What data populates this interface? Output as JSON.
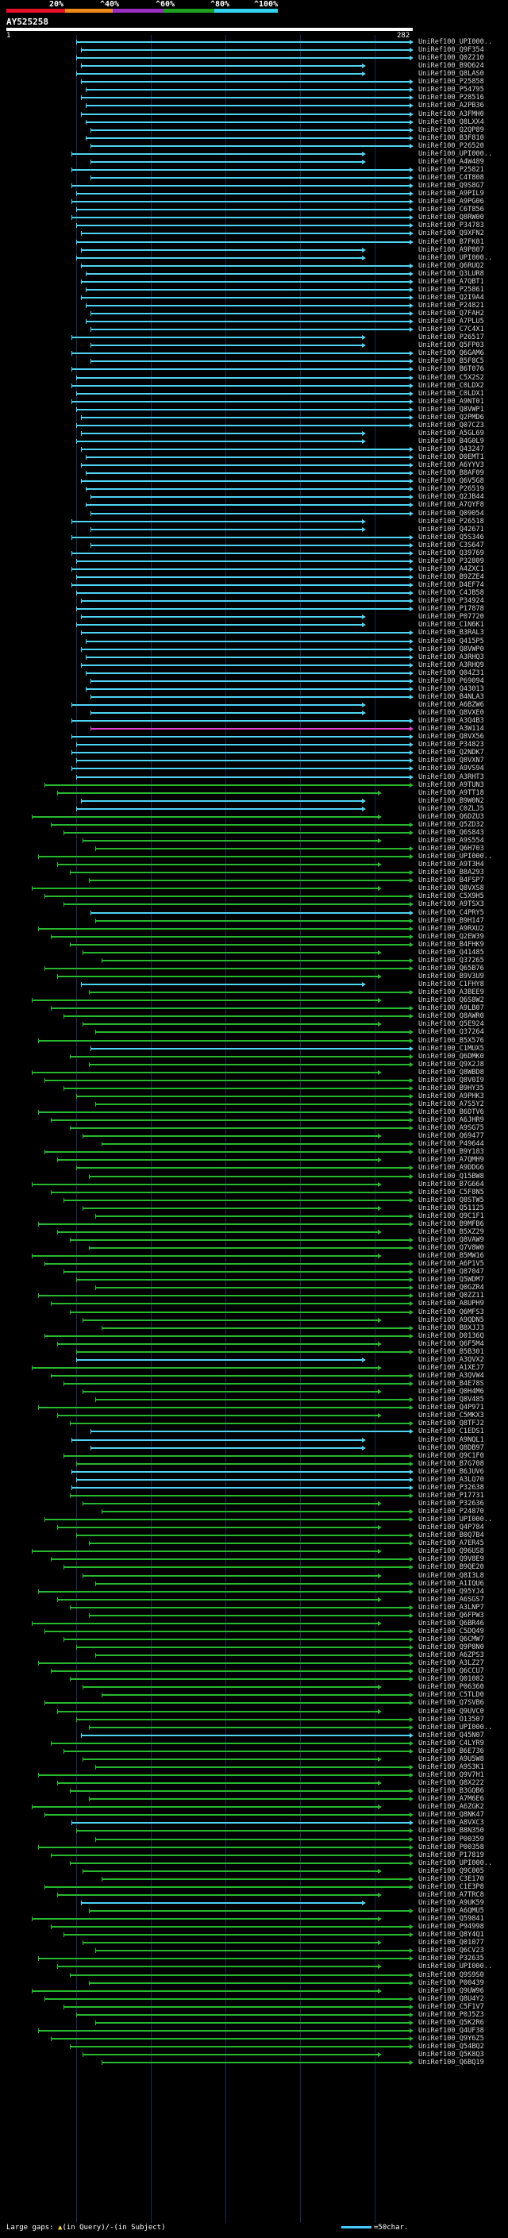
{
  "legend": {
    "labels": [
      "20%",
      "^40%",
      "^60%",
      "^80%",
      "^100%"
    ],
    "colors": [
      "#e8102a",
      "#ef8a1a",
      "#9b2fc2",
      "#1fa01f",
      "#33d3f0"
    ]
  },
  "query": {
    "name": "AY525258",
    "start": "1",
    "end": "282"
  },
  "footer": {
    "large_gaps_label": "Large gaps:",
    "in_query_text": "(in Query)/",
    "in_query_marker": "▲",
    "in_subject_marker": "-",
    "in_subject_text": "(in Subject)",
    "scale_text": "=50char."
  },
  "hit_colors": {
    "cyan": "#4ed4f4",
    "green": "#28b830",
    "magenta": "#e040d0"
  },
  "hits": [
    {
      "label": "UniRef100_UPI000..",
      "color": "cyan"
    },
    {
      "label": "UniRef100_Q9F354",
      "color": "cyan"
    },
    {
      "label": "UniRef100_Q0Z210",
      "color": "cyan"
    },
    {
      "label": "UniRef100_B9D624",
      "color": "cyan"
    },
    {
      "label": "UniRef100_Q8LAS0",
      "color": "cyan"
    },
    {
      "label": "UniRef100_P25858",
      "color": "cyan"
    },
    {
      "label": "UniRef100_P54795",
      "color": "cyan"
    },
    {
      "label": "UniRef100_P28516",
      "color": "cyan"
    },
    {
      "label": "UniRef100_A2PB36",
      "color": "cyan"
    },
    {
      "label": "UniRef100_A3FMH0",
      "color": "cyan"
    },
    {
      "label": "UniRef100_Q8LXX4",
      "color": "cyan"
    },
    {
      "label": "UniRef100_Q2QP89",
      "color": "cyan"
    },
    {
      "label": "UniRef100_B3F810",
      "color": "cyan"
    },
    {
      "label": "UniRef100_P26520",
      "color": "cyan"
    },
    {
      "label": "UniRef100_UPI000..",
      "color": "cyan"
    },
    {
      "label": "UniRef100_A4W489",
      "color": "cyan"
    },
    {
      "label": "UniRef100_P25821",
      "color": "cyan"
    },
    {
      "label": "UniRef100_C4T808",
      "color": "cyan"
    },
    {
      "label": "UniRef100_Q9S8G7",
      "color": "cyan"
    },
    {
      "label": "UniRef100_A9PIL9",
      "color": "cyan"
    },
    {
      "label": "UniRef100_A9PG06",
      "color": "cyan"
    },
    {
      "label": "UniRef100_C6T856",
      "color": "cyan"
    },
    {
      "label": "UniRef100_Q8RW00",
      "color": "cyan"
    },
    {
      "label": "UniRef100_P34783",
      "color": "cyan"
    },
    {
      "label": "UniRef100_Q9XFN2",
      "color": "cyan"
    },
    {
      "label": "UniRef100_B7FK01",
      "color": "cyan"
    },
    {
      "label": "UniRef100_A9P807",
      "color": "cyan"
    },
    {
      "label": "UniRef100_UPI000..",
      "color": "cyan"
    },
    {
      "label": "UniRef100_Q6RUQ2",
      "color": "cyan"
    },
    {
      "label": "UniRef100_Q3LUR8",
      "color": "cyan"
    },
    {
      "label": "UniRef100_A7QBT1",
      "color": "cyan"
    },
    {
      "label": "UniRef100_P25861",
      "color": "cyan"
    },
    {
      "label": "UniRef100_Q2I9A4",
      "color": "cyan"
    },
    {
      "label": "UniRef100_P24821",
      "color": "cyan"
    },
    {
      "label": "UniRef100_Q7FAH2",
      "color": "cyan"
    },
    {
      "label": "UniRef100_A7PLU5",
      "color": "cyan"
    },
    {
      "label": "UniRef100_C7C4X1",
      "color": "cyan"
    },
    {
      "label": "UniRef100_P26517",
      "color": "cyan"
    },
    {
      "label": "UniRef100_Q5FP03",
      "color": "cyan"
    },
    {
      "label": "UniRef100_Q6GAM6",
      "color": "cyan"
    },
    {
      "label": "UniRef100_B5F8C5",
      "color": "cyan"
    },
    {
      "label": "UniRef100_B6T076",
      "color": "cyan"
    },
    {
      "label": "UniRef100_C5X2S2",
      "color": "cyan"
    },
    {
      "label": "UniRef100_C0LDX2",
      "color": "cyan"
    },
    {
      "label": "UniRef100_C0LDX1",
      "color": "cyan"
    },
    {
      "label": "UniRef100_A9NT01",
      "color": "cyan"
    },
    {
      "label": "UniRef100_Q8VWP1",
      "color": "cyan"
    },
    {
      "label": "UniRef100_Q2PMD6",
      "color": "cyan"
    },
    {
      "label": "UniRef100_Q07CZ3",
      "color": "cyan"
    },
    {
      "label": "UniRef100_A5GL69",
      "color": "cyan"
    },
    {
      "label": "UniRef100_B4G0L9",
      "color": "cyan"
    },
    {
      "label": "UniRef100_Q43247",
      "color": "cyan"
    },
    {
      "label": "UniRef100_D0EMT1",
      "color": "cyan"
    },
    {
      "label": "UniRef100_A6YYV3",
      "color": "cyan"
    },
    {
      "label": "UniRef100_B8AF09",
      "color": "cyan"
    },
    {
      "label": "UniRef100_Q6V5G8",
      "color": "cyan"
    },
    {
      "label": "UniRef100_P26519",
      "color": "cyan"
    },
    {
      "label": "UniRef100_Q2JB44",
      "color": "cyan"
    },
    {
      "label": "UniRef100_A7QYF8",
      "color": "cyan"
    },
    {
      "label": "UniRef100_Q09054",
      "color": "cyan"
    },
    {
      "label": "UniRef100_P26518",
      "color": "cyan"
    },
    {
      "label": "UniRef100_Q42671",
      "color": "cyan"
    },
    {
      "label": "UniRef100_Q5S346",
      "color": "cyan"
    },
    {
      "label": "UniRef100_C3S647",
      "color": "cyan"
    },
    {
      "label": "UniRef100_Q39769",
      "color": "cyan"
    },
    {
      "label": "UniRef100_P32809",
      "color": "cyan"
    },
    {
      "label": "UniRef100_A4ZXC1",
      "color": "cyan"
    },
    {
      "label": "UniRef100_B9ZZE4",
      "color": "cyan"
    },
    {
      "label": "UniRef100_D4EF74",
      "color": "cyan"
    },
    {
      "label": "UniRef100_C4JB58",
      "color": "cyan"
    },
    {
      "label": "UniRef100_P34924",
      "color": "cyan"
    },
    {
      "label": "UniRef100_P17878",
      "color": "cyan"
    },
    {
      "label": "UniRef100_P07720",
      "color": "cyan"
    },
    {
      "label": "UniRef100_C1N6K1",
      "color": "cyan"
    },
    {
      "label": "UniRef100_B3RAL3",
      "color": "cyan"
    },
    {
      "label": "UniRef100_Q415P5",
      "color": "cyan"
    },
    {
      "label": "UniRef100_Q8VWP0",
      "color": "cyan"
    },
    {
      "label": "UniRef100_A3RHQ3",
      "color": "cyan"
    },
    {
      "label": "UniRef100_A3RHQ9",
      "color": "cyan"
    },
    {
      "label": "UniRef100_Q04Z31",
      "color": "cyan"
    },
    {
      "label": "UniRef100_P69094",
      "color": "cyan"
    },
    {
      "label": "UniRef100_Q43013",
      "color": "cyan"
    },
    {
      "label": "UniRef100_B4NLA3",
      "color": "cyan"
    },
    {
      "label": "UniRef100_A6BZW6",
      "color": "cyan"
    },
    {
      "label": "UniRef100_Q8VXE0",
      "color": "cyan"
    },
    {
      "label": "UniRef100_A3Q4B3",
      "color": "cyan"
    },
    {
      "label": "UniRef100_A3W114",
      "color": "magenta"
    },
    {
      "label": "UniRef100_Q8VX56",
      "color": "cyan"
    },
    {
      "label": "UniRef100_P34823",
      "color": "cyan"
    },
    {
      "label": "UniRef100_Q2NDK7",
      "color": "cyan"
    },
    {
      "label": "UniRef100_Q8VXN7",
      "color": "cyan"
    },
    {
      "label": "UniRef100_A9VS94",
      "color": "cyan"
    },
    {
      "label": "UniRef100_A3RHT3",
      "color": "cyan"
    },
    {
      "label": "UniRef100_A9TUN3",
      "color": "green"
    },
    {
      "label": "UniRef100_A9TT18",
      "color": "green"
    },
    {
      "label": "UniRef100_B9W0N2",
      "color": "cyan"
    },
    {
      "label": "UniRef100_C0ZLJ5",
      "color": "cyan"
    },
    {
      "label": "UniRef100_Q6DZU3",
      "color": "green"
    },
    {
      "label": "UniRef100_Q5ZD32",
      "color": "green"
    },
    {
      "label": "UniRef100_Q6S843",
      "color": "green"
    },
    {
      "label": "UniRef100_A9S554",
      "color": "green"
    },
    {
      "label": "UniRef100_Q6H703",
      "color": "green"
    },
    {
      "label": "UniRef100_UPI000..",
      "color": "green"
    },
    {
      "label": "UniRef100_A9T3H4",
      "color": "green"
    },
    {
      "label": "UniRef100_B8A293",
      "color": "green"
    },
    {
      "label": "UniRef100_B4FSP7",
      "color": "green"
    },
    {
      "label": "UniRef100_Q8VXS8",
      "color": "green"
    },
    {
      "label": "UniRef100_C5X9H5",
      "color": "green"
    },
    {
      "label": "UniRef100_A9TSX3",
      "color": "green"
    },
    {
      "label": "UniRef100_C4PRY5",
      "color": "cyan"
    },
    {
      "label": "UniRef100_B9H147",
      "color": "green"
    },
    {
      "label": "UniRef100_A9RXU2",
      "color": "green"
    },
    {
      "label": "UniRef100_Q2EW39",
      "color": "green"
    },
    {
      "label": "UniRef100_B4FHK9",
      "color": "green"
    },
    {
      "label": "UniRef100_Q41485",
      "color": "green"
    },
    {
      "label": "UniRef100_Q37265",
      "color": "green"
    },
    {
      "label": "UniRef100_Q65B76",
      "color": "green"
    },
    {
      "label": "UniRef100_B9V3U9",
      "color": "green"
    },
    {
      "label": "UniRef100_C1FHY8",
      "color": "cyan"
    },
    {
      "label": "UniRef100_A3BEE9",
      "color": "green"
    },
    {
      "label": "UniRef100_Q6S8W2",
      "color": "green"
    },
    {
      "label": "UniRef100_A9LB07",
      "green": 1,
      "color": "green"
    },
    {
      "label": "UniRef100_Q8AWR0",
      "color": "green"
    },
    {
      "label": "UniRef100_Q5E924",
      "color": "green"
    },
    {
      "label": "UniRef100_Q37264",
      "color": "green"
    },
    {
      "label": "UniRef100_B5X576",
      "color": "green"
    },
    {
      "label": "UniRef100_C1MUX5",
      "color": "cyan"
    },
    {
      "label": "UniRef100_Q6DMK0",
      "color": "green"
    },
    {
      "label": "UniRef100_Q9X2J8",
      "color": "green"
    },
    {
      "label": "UniRef100_Q8WBD8",
      "color": "green"
    },
    {
      "label": "UniRef100_Q8V0I9",
      "color": "green"
    },
    {
      "label": "UniRef100_B9HY35",
      "color": "green"
    },
    {
      "label": "UniRef100_A9PHK3",
      "color": "green"
    },
    {
      "label": "UniRef100_A7S5Y2",
      "color": "green"
    },
    {
      "label": "UniRef100_B6DTV6",
      "color": "green"
    },
    {
      "label": "UniRef100_A6JHR9",
      "color": "green"
    },
    {
      "label": "UniRef100_A9SG75",
      "color": "green"
    },
    {
      "label": "UniRef100_Q69477",
      "color": "green"
    },
    {
      "label": "UniRef100_P49644",
      "color": "green"
    },
    {
      "label": "UniRef100_B9Y183",
      "color": "green"
    },
    {
      "label": "UniRef100_A7QMH9",
      "color": "green"
    },
    {
      "label": "UniRef100_A9DDG6",
      "color": "green"
    },
    {
      "label": "UniRef100_Q15BW8",
      "color": "green"
    },
    {
      "label": "UniRef100_B7G664",
      "color": "green"
    },
    {
      "label": "UniRef100_C5F8N5",
      "color": "green"
    },
    {
      "label": "UniRef100_Q8STW5",
      "color": "green"
    },
    {
      "label": "UniRef100_Q51125",
      "color": "green"
    },
    {
      "label": "UniRef100_Q9C1F1",
      "color": "green"
    },
    {
      "label": "UniRef100_B9MFB6",
      "color": "green"
    },
    {
      "label": "UniRef100_B5XZ29",
      "color": "green"
    },
    {
      "label": "UniRef100_Q8VAW9",
      "color": "green"
    },
    {
      "label": "UniRef100_Q7V8W0",
      "color": "green"
    },
    {
      "label": "UniRef100_B5MW16",
      "color": "green"
    },
    {
      "label": "UniRef100_A6P1V5",
      "color": "green"
    },
    {
      "label": "UniRef100_Q87047",
      "color": "green"
    },
    {
      "label": "UniRef100_Q5WDM7",
      "color": "green"
    },
    {
      "label": "UniRef100_Q0GZR4",
      "color": "green"
    },
    {
      "label": "UniRef100_Q0ZZ11",
      "color": "green"
    },
    {
      "label": "UniRef100_A8UPH9",
      "color": "green"
    },
    {
      "label": "UniRef100_Q6MFS3",
      "color": "green"
    },
    {
      "label": "UniRef100_A9QDN5",
      "color": "green"
    },
    {
      "label": "UniRef100_B8XJJ3",
      "color": "green"
    },
    {
      "label": "UniRef100_D0136Q",
      "color": "green"
    },
    {
      "label": "UniRef100_Q6F5M4",
      "color": "green"
    },
    {
      "label": "UniRef100_B5B301",
      "color": "green"
    },
    {
      "label": "UniRef100_A3QVX2",
      "color": "cyan"
    },
    {
      "label": "UniRef100_A1XEJ7",
      "color": "green"
    },
    {
      "label": "UniRef100_A3QVW4",
      "color": "green"
    },
    {
      "label": "UniRef100_B4E78S",
      "color": "green"
    },
    {
      "label": "UniRef100_Q0H4M6",
      "color": "green"
    },
    {
      "label": "UniRef100_Q8V485",
      "color": "green"
    },
    {
      "label": "UniRef100_Q4P971",
      "color": "green"
    },
    {
      "label": "UniRef100_C5MKX3",
      "color": "green"
    },
    {
      "label": "UniRef100_Q8TFJ2",
      "color": "green"
    },
    {
      "label": "UniRef100_C1EDS1",
      "color": "cyan"
    },
    {
      "label": "UniRef100_A9NQL1",
      "color": "cyan"
    },
    {
      "label": "UniRef100_Q8DB97",
      "color": "cyan"
    },
    {
      "label": "UniRef100_Q9C1F0",
      "color": "green"
    },
    {
      "label": "UniRef100_B7G708",
      "color": "green"
    },
    {
      "label": "UniRef100_B6JUV6",
      "color": "cyan"
    },
    {
      "label": "UniRef100_A3LQ70",
      "color": "cyan"
    },
    {
      "label": "UniRef100_P32638",
      "color": "cyan"
    },
    {
      "label": "UniRef100_P17731",
      "color": "green"
    },
    {
      "label": "UniRef100_P32636",
      "color": "green"
    },
    {
      "label": "UniRef100_P24870",
      "color": "green"
    },
    {
      "label": "UniRef100_UPI000..",
      "color": "green"
    },
    {
      "label": "UniRef100_Q4P784",
      "color": "green"
    },
    {
      "label": "UniRef100_B0Q7B4",
      "color": "green"
    },
    {
      "label": "UniRef100_A7ER45",
      "color": "green"
    },
    {
      "label": "UniRef100_Q96US8",
      "color": "green"
    },
    {
      "label": "UniRef100_Q9V8E9",
      "color": "green"
    },
    {
      "label": "UniRef100_B9QE20",
      "color": "green"
    },
    {
      "label": "UniRef100_Q8I3L8",
      "color": "green"
    },
    {
      "label": "UniRef100_A1IQU6",
      "color": "green"
    },
    {
      "label": "UniRef100_Q95YJ4",
      "color": "green"
    },
    {
      "label": "UniRef100_A6SGS7",
      "color": "green"
    },
    {
      "label": "UniRef100_A3LNP7",
      "color": "green"
    },
    {
      "label": "UniRef100_Q6FPW3",
      "color": "green"
    },
    {
      "label": "UniRef100_Q6BR46",
      "color": "green"
    },
    {
      "label": "UniRef100_C5DQ49",
      "color": "green"
    },
    {
      "label": "UniRef100_Q6CMW7",
      "color": "green"
    },
    {
      "label": "UniRef100_Q9P8N0",
      "color": "green"
    },
    {
      "label": "UniRef100_A6ZPS3",
      "color": "green"
    },
    {
      "label": "UniRef100_A3LZ27",
      "color": "green"
    },
    {
      "label": "UniRef100_Q6CCU7",
      "color": "green"
    },
    {
      "label": "UniRef100_Q01082",
      "color": "green"
    },
    {
      "label": "UniRef100_P06360",
      "color": "green"
    },
    {
      "label": "UniRef100_C5TLD0",
      "color": "green"
    },
    {
      "label": "UniRef100_Q7SVB6",
      "color": "green"
    },
    {
      "label": "UniRef100_Q9UVC0",
      "color": "green"
    },
    {
      "label": "UniRef100_O13507",
      "color": "green"
    },
    {
      "label": "UniRef100_UPI000..",
      "color": "green"
    },
    {
      "label": "UniRef100_Q45N07",
      "color": "cyan"
    },
    {
      "label": "UniRef100_C4LYR9",
      "color": "green"
    },
    {
      "label": "UniRef100_B6E736",
      "color": "green"
    },
    {
      "label": "UniRef100_A9U5W8",
      "color": "green"
    },
    {
      "label": "UniRef100_A9S3K1",
      "color": "green"
    },
    {
      "label": "UniRef100_Q9V7H1",
      "color": "green"
    },
    {
      "label": "UniRef100_Q8X222",
      "color": "green"
    },
    {
      "label": "UniRef100_B3GQB6",
      "color": "green"
    },
    {
      "label": "UniRef100_A7M6E6",
      "color": "green"
    },
    {
      "label": "UniRef100_A6ZGK2",
      "color": "green"
    },
    {
      "label": "UniRef100_Q8NK47",
      "color": "green"
    },
    {
      "label": "UniRef100_A8VXC3",
      "color": "cyan"
    },
    {
      "label": "UniRef100_B8N350",
      "color": "green"
    },
    {
      "label": "UniRef100_P00359",
      "color": "green"
    },
    {
      "label": "UniRef100_P00358",
      "color": "green"
    },
    {
      "label": "UniRef100_P17819",
      "color": "green"
    },
    {
      "label": "UniRef100_UPI000..",
      "color": "green"
    },
    {
      "label": "UniRef100_Q9C005",
      "color": "green"
    },
    {
      "label": "UniRef100_C3E170",
      "color": "green"
    },
    {
      "label": "UniRef100_C1E3P8",
      "color": "green"
    },
    {
      "label": "UniRef100_A7TRC8",
      "color": "green"
    },
    {
      "label": "UniRef100_A9UK59",
      "color": "cyan"
    },
    {
      "label": "UniRef100_A6QMU5",
      "color": "green"
    },
    {
      "label": "UniRef100_Q59841",
      "color": "green"
    },
    {
      "label": "UniRef100_P94998",
      "color": "green"
    },
    {
      "label": "UniRef100_Q8Y4Q1",
      "color": "green"
    },
    {
      "label": "UniRef100_Q01077",
      "color": "green"
    },
    {
      "label": "UniRef100_Q6CV23",
      "color": "green"
    },
    {
      "label": "UniRef100_P32635",
      "color": "green"
    },
    {
      "label": "UniRef100_UPI000..",
      "color": "green"
    },
    {
      "label": "UniRef100_Q9S9S0",
      "color": "green"
    },
    {
      "label": "UniRef100_P00439",
      "color": "green"
    },
    {
      "label": "UniRef100_Q9UW96",
      "color": "green"
    },
    {
      "label": "UniRef100_Q8U4Y2",
      "color": "green"
    },
    {
      "label": "UniRef100_C5F1V7",
      "color": "green"
    },
    {
      "label": "UniRef100_P0J5Z3",
      "color": "green"
    },
    {
      "label": "UniRef100_Q5K2R6",
      "color": "green"
    },
    {
      "label": "UniRef100_Q4UF38",
      "color": "green"
    },
    {
      "label": "UniRef100_Q9Y6Z5",
      "color": "green"
    },
    {
      "label": "UniRef100_Q54BQ2",
      "color": "green"
    },
    {
      "label": "UniRef100_Q5K8Q3",
      "color": "green"
    },
    {
      "label": "UniRef100_Q6BQ19",
      "color": "green"
    }
  ]
}
